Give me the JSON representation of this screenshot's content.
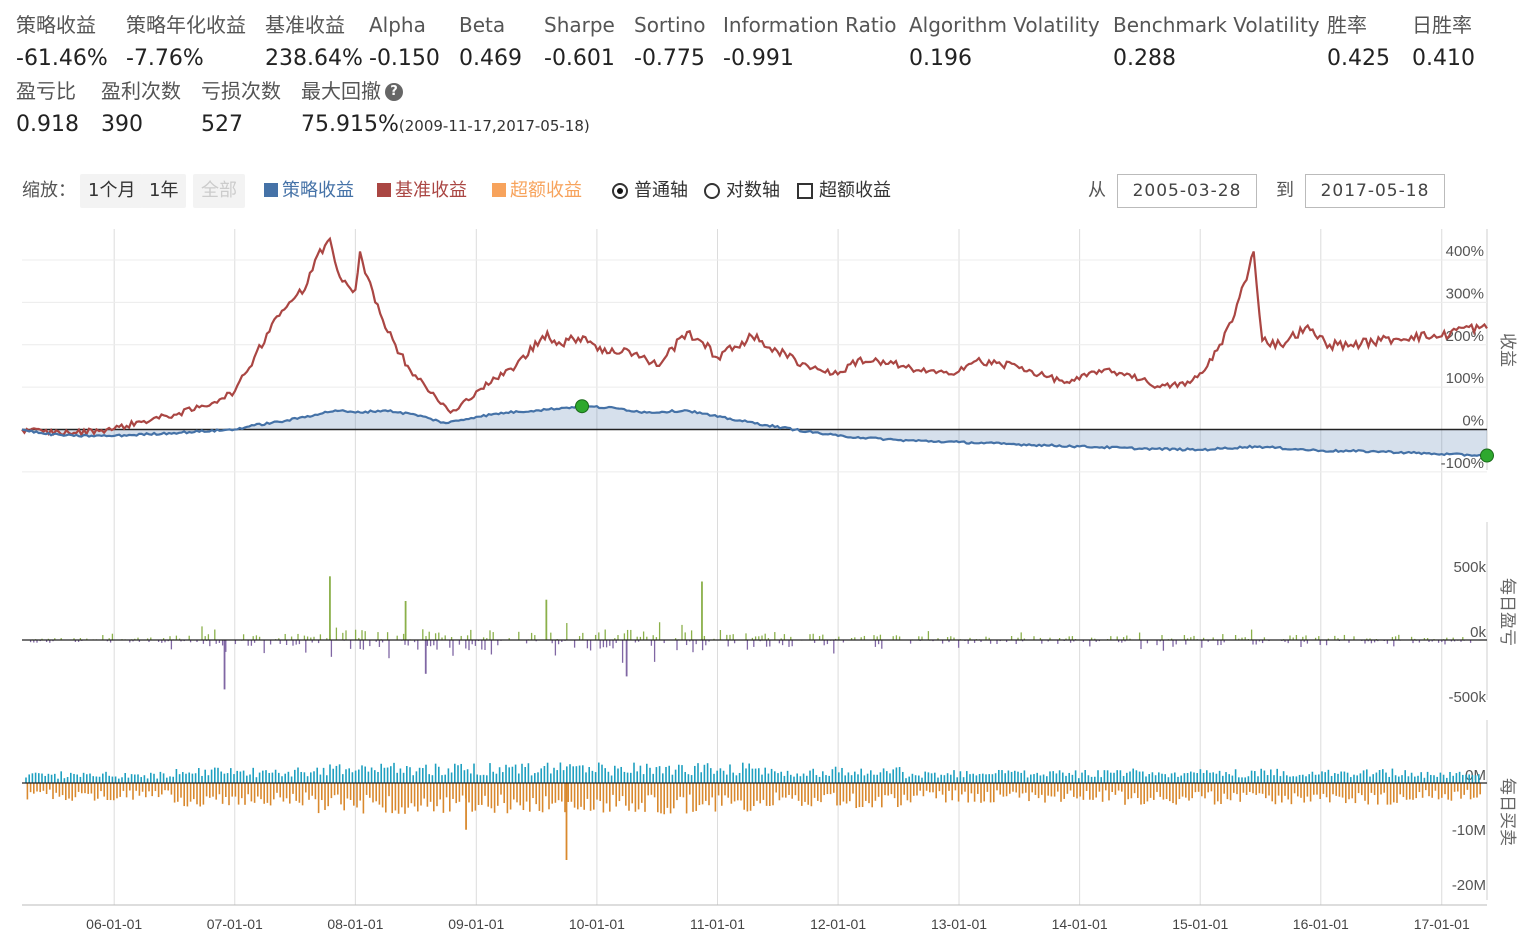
{
  "metrics": [
    {
      "label": "策略收益",
      "value": "-61.46%"
    },
    {
      "label": "策略年化收益",
      "value": "-7.76%"
    },
    {
      "label": "基准收益",
      "value": "238.64%"
    },
    {
      "label": "Alpha",
      "value": "-0.150"
    },
    {
      "label": "Beta",
      "value": "0.469"
    },
    {
      "label": "Sharpe",
      "value": "-0.601"
    },
    {
      "label": "Sortino",
      "value": "-0.775"
    },
    {
      "label": "Information Ratio",
      "value": "-0.991"
    },
    {
      "label": "Algorithm Volatility",
      "value": "0.196"
    },
    {
      "label": "Benchmark Volatility",
      "value": "0.288"
    },
    {
      "label": "胜率",
      "value": "0.425"
    },
    {
      "label": "日胜率",
      "value": "0.410"
    },
    {
      "label": "盈亏比",
      "value": "0.918"
    },
    {
      "label": "盈利次数",
      "value": "390"
    },
    {
      "label": "亏损次数",
      "value": "527"
    },
    {
      "label": "最大回撤",
      "value": "75.915%",
      "note": "(2009-11-17,2017-05-18)",
      "help": "?"
    }
  ],
  "toolbar": {
    "zoom_label": "缩放：",
    "zoom_buttons": [
      "1个月",
      "1年",
      "全部"
    ],
    "legend": [
      "策略收益",
      "基准收益",
      "超额收益"
    ],
    "axis_normal": "普通轴",
    "axis_log": "对数轴",
    "excess_checkbox": "超额收益",
    "from_label": "从",
    "from_date": "2005-03-28",
    "to_label": "到",
    "to_date": "2017-05-18"
  },
  "colors": {
    "strategy": "#4572a7",
    "benchmark": "#aa4643",
    "excess": "#f7a35c",
    "profit": "#8bb04a",
    "loss": "#8067a4",
    "buy": "#1fa0c0",
    "sell": "#d9892e"
  },
  "chart_data": [
    {
      "type": "line",
      "ylabel": "收益",
      "x_ticks": [
        "06-01-01",
        "07-01-01",
        "08-01-01",
        "09-01-01",
        "10-01-01",
        "11-01-01",
        "12-01-01",
        "13-01-01",
        "14-01-01",
        "15-01-01",
        "16-01-01",
        "17-01-01"
      ],
      "y_ticks": [
        "400%",
        "300%",
        "200%",
        "100%",
        "0%",
        "-100%"
      ],
      "ylim": [
        -100,
        440
      ],
      "series": [
        {
          "name": "基准收益",
          "x": [
            "2005-03-28",
            "2005-06-01",
            "2005-09-01",
            "2006-01-01",
            "2006-04-01",
            "2006-07-01",
            "2006-10-01",
            "2007-01-01",
            "2007-03-01",
            "2007-05-01",
            "2007-06-15",
            "2007-08-01",
            "2007-09-01",
            "2007-10-16",
            "2007-11-15",
            "2008-01-01",
            "2008-01-15",
            "2008-03-01",
            "2008-05-01",
            "2008-06-15",
            "2008-08-01",
            "2008-10-15",
            "2008-11-01",
            "2009-01-01",
            "2009-03-01",
            "2009-05-01",
            "2009-08-04",
            "2009-09-01",
            "2009-11-20",
            "2010-02-01",
            "2010-04-01",
            "2010-07-01",
            "2010-10-01",
            "2010-11-10",
            "2011-01-01",
            "2011-04-15",
            "2011-07-01",
            "2011-10-01",
            "2011-12-31",
            "2012-03-01",
            "2012-06-01",
            "2012-09-01",
            "2012-12-01",
            "2013-02-15",
            "2013-06-25",
            "2013-09-01",
            "2013-12-01",
            "2014-03-01",
            "2014-06-01",
            "2014-09-01",
            "2014-12-01",
            "2015-01-15",
            "2015-03-01",
            "2015-04-15",
            "2015-06-12",
            "2015-07-08",
            "2015-09-01",
            "2015-11-15",
            "2016-01-28",
            "2016-04-01",
            "2016-07-01",
            "2016-10-01",
            "2017-01-01",
            "2017-03-01",
            "2017-05-18"
          ],
          "values": [
            0,
            -5,
            -8,
            2,
            20,
            35,
            55,
            90,
            170,
            260,
            300,
            330,
            400,
            450,
            360,
            330,
            420,
            300,
            200,
            140,
            100,
            40,
            45,
            90,
            120,
            150,
            230,
            200,
            220,
            180,
            190,
            150,
            230,
            210,
            170,
            220,
            185,
            150,
            130,
            165,
            155,
            140,
            130,
            160,
            150,
            130,
            110,
            140,
            130,
            100,
            110,
            140,
            200,
            270,
            420,
            210,
            200,
            240,
            200,
            200,
            210,
            220,
            220,
            240,
            238.64
          ]
        },
        {
          "name": "策略收益",
          "x": [
            "2005-03-28",
            "2005-06-01",
            "2005-09-01",
            "2006-01-01",
            "2006-07-01",
            "2007-01-01",
            "2007-03-01",
            "2007-06-01",
            "2007-09-01",
            "2007-11-01",
            "2008-01-01",
            "2008-04-01",
            "2008-07-01",
            "2008-10-01",
            "2009-01-01",
            "2009-04-01",
            "2009-07-01",
            "2009-11-17",
            "2010-03-01",
            "2010-06-01",
            "2010-10-01",
            "2011-01-01",
            "2011-06-01",
            "2011-10-01",
            "2012-01-01",
            "2012-07-01",
            "2013-01-01",
            "2013-07-01",
            "2014-01-01",
            "2014-07-01",
            "2015-01-01",
            "2015-06-15",
            "2016-01-01",
            "2016-07-01",
            "2017-01-01",
            "2017-05-18"
          ],
          "values": [
            0,
            -10,
            -15,
            -15,
            -8,
            0,
            10,
            20,
            35,
            45,
            40,
            45,
            35,
            15,
            30,
            40,
            45,
            55,
            50,
            40,
            45,
            30,
            10,
            -5,
            -15,
            -25,
            -30,
            -35,
            -40,
            -45,
            -48,
            -40,
            -50,
            -52,
            -58,
            -61.46
          ]
        }
      ],
      "markers": [
        {
          "date": "2009-11-17",
          "value": 55
        },
        {
          "date": "2017-05-18",
          "value": -61.46
        }
      ]
    },
    {
      "type": "bar",
      "ylabel": "每日盈亏",
      "y_ticks": [
        "500k",
        "0k",
        "-500k"
      ],
      "ylim": [
        -600000,
        600000
      ],
      "series": [
        {
          "name": "每日盈亏"
        }
      ],
      "highlights": [
        {
          "date": "2007-10-16",
          "value": 490000
        },
        {
          "date": "2008-06-01",
          "value": 300000
        },
        {
          "date": "2009-08-01",
          "value": 310000
        },
        {
          "date": "2010-11-15",
          "value": 450000
        },
        {
          "date": "2006-12-01",
          "value": -380000
        },
        {
          "date": "2008-08-01",
          "value": -260000
        },
        {
          "date": "2010-04-01",
          "value": -280000
        }
      ]
    },
    {
      "type": "bar",
      "ylabel": "每日买卖",
      "y_ticks": [
        "0M",
        "-10M",
        "-20M"
      ],
      "ylim": [
        -20000000,
        5000000
      ],
      "series": [
        {
          "name": "每日买卖"
        }
      ],
      "highlights": [
        {
          "date": "2009-10-01",
          "value": -14000000
        },
        {
          "date": "2008-12-01",
          "value": -8500000
        }
      ]
    }
  ]
}
